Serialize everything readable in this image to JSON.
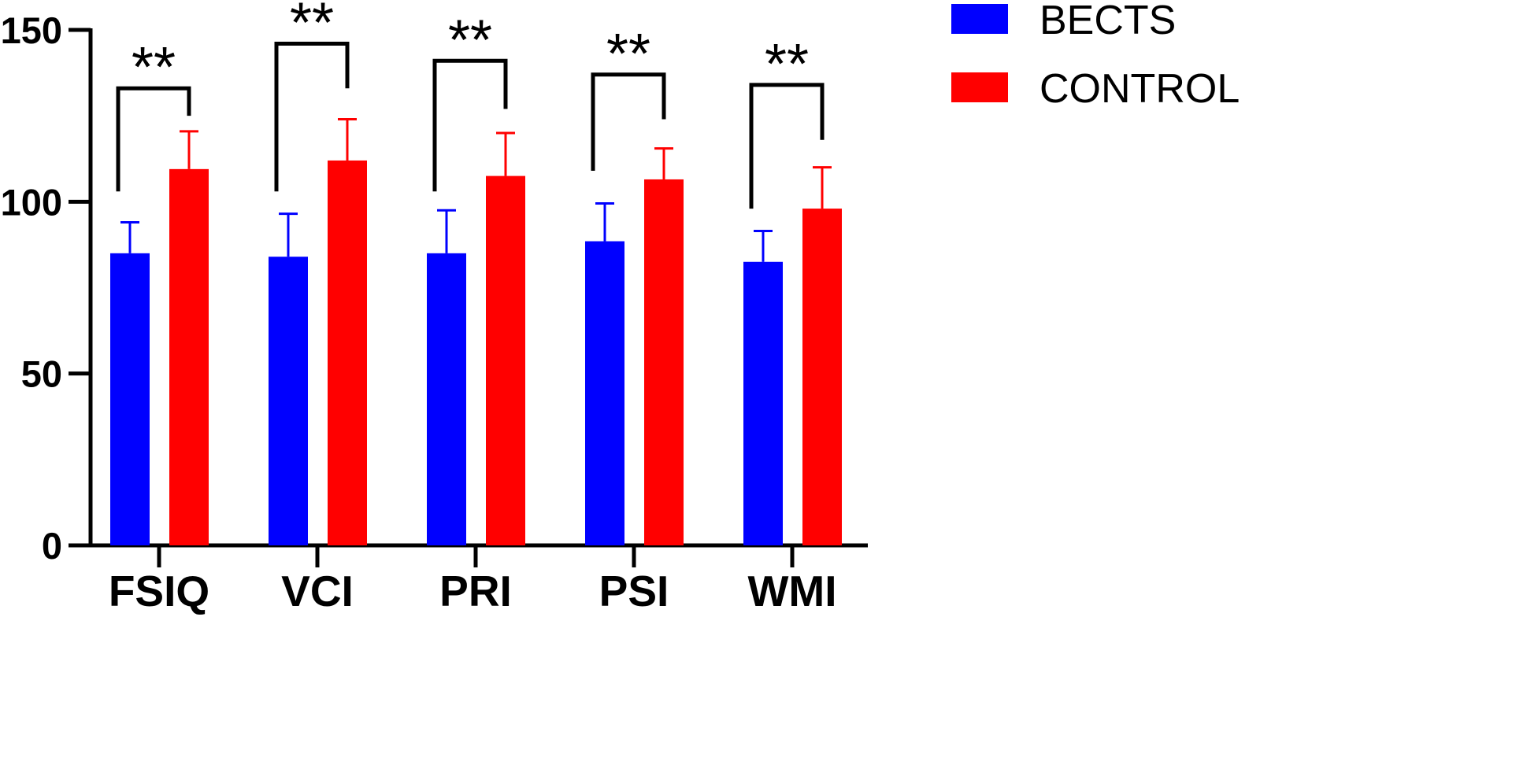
{
  "chart_data": {
    "type": "bar",
    "title": "",
    "xlabel": "",
    "ylabel": "",
    "ylim": [
      0,
      150
    ],
    "yticks": [
      "0",
      "50",
      "100",
      "150"
    ],
    "categories": [
      "FSIQ",
      "VCI",
      "PRI",
      "PSI",
      "WMI"
    ],
    "series": [
      {
        "name": "BECTS",
        "color": "#0000ff",
        "values": [
          85,
          84,
          85,
          88.5,
          82.5
        ],
        "errors": [
          9,
          12.5,
          12.5,
          11,
          9
        ]
      },
      {
        "name": "CONTROL",
        "color": "#ff0000",
        "values": [
          109.5,
          112,
          107.5,
          106.5,
          98
        ],
        "errors": [
          11,
          12,
          12.5,
          9,
          12
        ]
      }
    ],
    "significance": [
      {
        "label": "**",
        "bracket_y": 133,
        "left_y": 103,
        "right_y": 125
      },
      {
        "label": "**",
        "bracket_y": 146,
        "left_y": 103,
        "right_y": 133
      },
      {
        "label": "**",
        "bracket_y": 141,
        "left_y": 103,
        "right_y": 127
      },
      {
        "label": "**",
        "bracket_y": 137,
        "left_y": 109,
        "right_y": 124
      },
      {
        "label": "**",
        "bracket_y": 134,
        "left_y": 98,
        "right_y": 118
      }
    ],
    "legend": {
      "position": "top-right"
    },
    "grid": false
  }
}
